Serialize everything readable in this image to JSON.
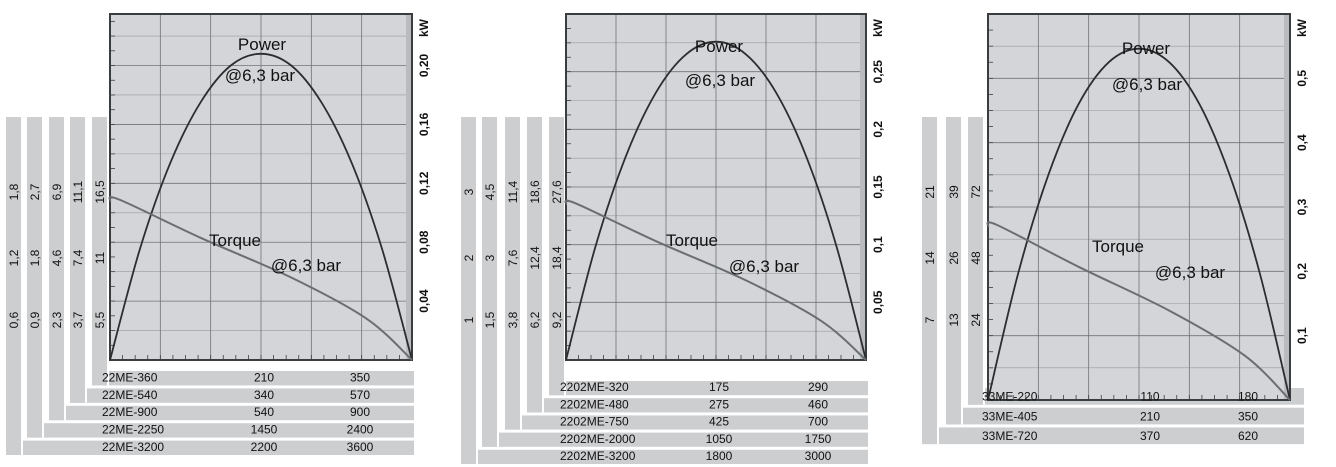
{
  "colors": {
    "plot_bg": "#d3d5d8",
    "grid": "#6f7378",
    "frame": "#3a3d40",
    "power_curve": "#2b2d30",
    "torque_curve": "#6a6e73",
    "strip": "#cdced0",
    "text": "#111111"
  },
  "chart_data": [
    {
      "type": "line",
      "y_unit": "kW",
      "y_ticks": [
        "0,04",
        "0,08",
        "0,12",
        "0,16",
        "0,20"
      ],
      "ylim": [
        0,
        0.235
      ],
      "power_label": "Power",
      "power_pressure": "@6,3 bar",
      "torque_label": "Torque",
      "torque_pressure": "@6,3 bar",
      "series": [
        {
          "x": [
            0,
            0.1,
            0.2,
            0.3,
            0.4,
            0.5,
            0.6,
            0.7,
            0.8,
            0.9,
            1.0
          ],
          "y": [
            0,
            0.076,
            0.134,
            0.175,
            0.2,
            0.208,
            0.2,
            0.175,
            0.134,
            0.076,
            0
          ]
        },
        {
          "x": [
            0,
            0.03,
            0.3,
            0.6,
            0.85,
            1.0
          ],
          "y": [
            0.108,
            0.109,
            0.083,
            0.056,
            0.028,
            0
          ]
        }
      ],
      "torque_columns": [
        [
          "0,6",
          "1,2",
          "1,8"
        ],
        [
          "0,9",
          "1,8",
          "2,7"
        ],
        [
          "2,3",
          "4,6",
          "6,9"
        ],
        [
          "3,7",
          "7,4",
          "11,1"
        ],
        [
          "5,5",
          "11",
          "16,5"
        ]
      ],
      "rows": [
        {
          "model": "22ME-360",
          "v1": "210",
          "v2": "350"
        },
        {
          "model": "22ME-540",
          "v1": "340",
          "v2": "570"
        },
        {
          "model": "22ME-900",
          "v1": "540",
          "v2": "900"
        },
        {
          "model": "22ME-2250",
          "v1": "1450",
          "v2": "2400"
        },
        {
          "model": "22ME-3200",
          "v1": "2200",
          "v2": "3600"
        }
      ]
    },
    {
      "type": "line",
      "y_unit": "kW",
      "y_ticks": [
        "0,05",
        "0,1",
        "0,15",
        "0,2",
        "0,25"
      ],
      "ylim": [
        0,
        0.3
      ],
      "power_label": "Power",
      "power_pressure": "@6,3 bar",
      "torque_label": "Torque",
      "torque_pressure": "@6,3 bar",
      "series": [
        {
          "x": [
            0,
            0.1,
            0.2,
            0.3,
            0.4,
            0.5,
            0.6,
            0.7,
            0.8,
            0.9,
            1.0
          ],
          "y": [
            0,
            0.1,
            0.177,
            0.232,
            0.265,
            0.276,
            0.265,
            0.232,
            0.177,
            0.1,
            0
          ]
        },
        {
          "x": [
            0,
            0.03,
            0.3,
            0.6,
            0.85,
            1.0
          ],
          "y": [
            0.135,
            0.136,
            0.103,
            0.069,
            0.034,
            0
          ]
        }
      ],
      "torque_columns": [
        [
          "1",
          "2",
          "3"
        ],
        [
          "1,5",
          "3",
          "4,5"
        ],
        [
          "3,8",
          "7,6",
          "11,4"
        ],
        [
          "6,2",
          "12,4",
          "18,6"
        ],
        [
          "9,2",
          "18,4",
          "27,6"
        ]
      ],
      "rows": [
        {
          "model": "2202ME-320",
          "v1": "175",
          "v2": "290"
        },
        {
          "model": "2202ME-480",
          "v1": "275",
          "v2": "460"
        },
        {
          "model": "2202ME-750",
          "v1": "425",
          "v2": "700"
        },
        {
          "model": "2202ME-2000",
          "v1": "1050",
          "v2": "1750"
        },
        {
          "model": "2202ME-3200",
          "v1": "1800",
          "v2": "3000"
        }
      ]
    },
    {
      "type": "line",
      "y_unit": "kW",
      "y_ticks": [
        "0,1",
        "0,2",
        "0,3",
        "0,4",
        "0,5"
      ],
      "ylim": [
        0,
        0.6
      ],
      "power_label": "Power",
      "power_pressure": "@6,3 bar",
      "torque_label": "Torque",
      "torque_pressure": "@6,3 bar",
      "series": [
        {
          "x": [
            0,
            0.1,
            0.2,
            0.3,
            0.4,
            0.5,
            0.6,
            0.7,
            0.8,
            0.9,
            1.0
          ],
          "y": [
            0,
            0.197,
            0.35,
            0.46,
            0.525,
            0.546,
            0.525,
            0.46,
            0.35,
            0.197,
            0
          ]
        },
        {
          "x": [
            0,
            0.03,
            0.3,
            0.6,
            0.85,
            1.0
          ],
          "y": [
            0.27,
            0.272,
            0.207,
            0.139,
            0.069,
            0
          ]
        }
      ],
      "torque_columns": [
        [
          "7",
          "14",
          "21"
        ],
        [
          "13",
          "26",
          "39"
        ],
        [
          "24",
          "48",
          "72"
        ]
      ],
      "rows": [
        {
          "model": "33ME-220",
          "v1": "110",
          "v2": "180"
        },
        {
          "model": "33ME-405",
          "v1": "210",
          "v2": "350"
        },
        {
          "model": "33ME-720",
          "v1": "370",
          "v2": "620"
        }
      ]
    }
  ]
}
